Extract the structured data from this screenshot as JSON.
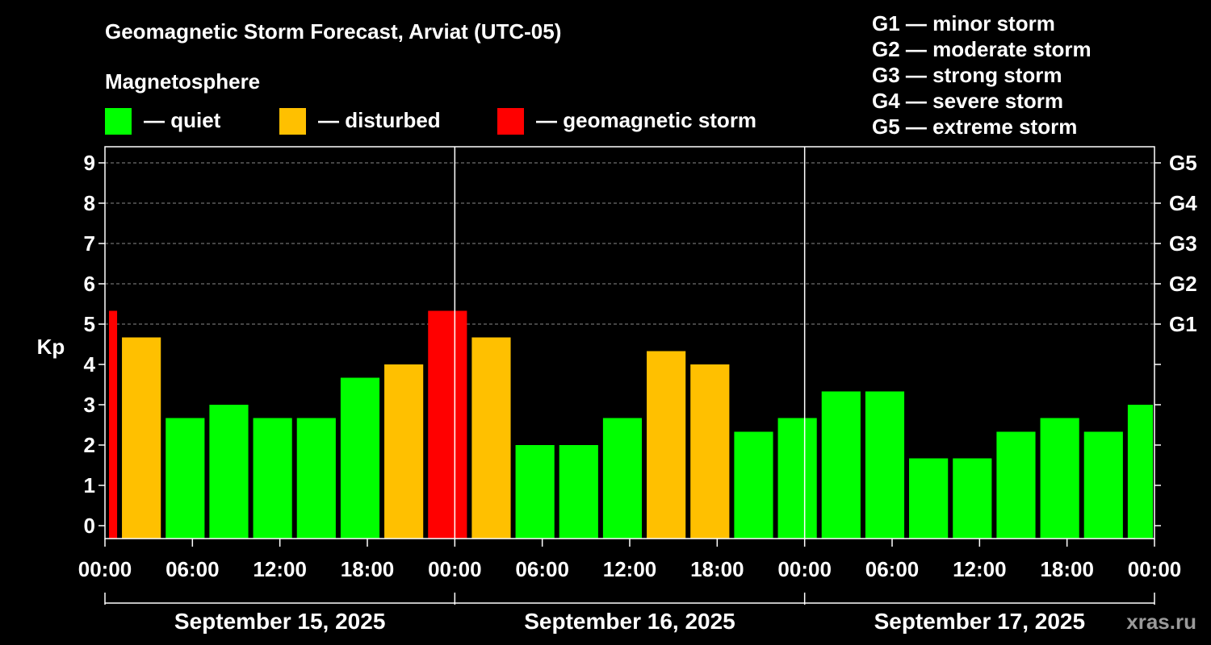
{
  "chart_data": {
    "type": "bar",
    "title": "Geomagnetic Storm Forecast, Arviat (UTC-05)",
    "legend_title": "Magnetosphere",
    "legend": [
      {
        "label": "— quiet",
        "color": "#00ff00"
      },
      {
        "label": "— disturbed",
        "color": "#ffc000"
      },
      {
        "label": "— geomagnetic storm",
        "color": "#ff0000"
      }
    ],
    "storm_scale": [
      "G1 — minor storm",
      "G2 — moderate storm",
      "G3 — strong storm",
      "G4 — severe storm",
      "G5 — extreme storm"
    ],
    "ylabel": "Kp",
    "ylim": [
      0,
      9
    ],
    "yticks": [
      "0",
      "1",
      "2",
      "3",
      "4",
      "5",
      "6",
      "7",
      "8",
      "9"
    ],
    "right_ticks": [
      {
        "kp": 5,
        "label": "G1"
      },
      {
        "kp": 6,
        "label": "G2"
      },
      {
        "kp": 7,
        "label": "G3"
      },
      {
        "kp": 8,
        "label": "G4"
      },
      {
        "kp": 9,
        "label": "G5"
      }
    ],
    "xlim_hours": [
      0,
      72
    ],
    "xticks": [
      "00:00",
      "06:00",
      "12:00",
      "18:00",
      "00:00",
      "06:00",
      "12:00",
      "18:00",
      "00:00",
      "06:00",
      "12:00",
      "18:00",
      "00:00"
    ],
    "days": [
      "September 15, 2025",
      "September 16, 2025",
      "September 17, 2025"
    ],
    "bars": [
      {
        "start": 0,
        "end": 1,
        "kp": 5.33,
        "level": "storm"
      },
      {
        "start": 1,
        "end": 4,
        "kp": 4.67,
        "level": "disturbed"
      },
      {
        "start": 4,
        "end": 7,
        "kp": 2.67,
        "level": "quiet"
      },
      {
        "start": 7,
        "end": 10,
        "kp": 3.0,
        "level": "quiet"
      },
      {
        "start": 10,
        "end": 13,
        "kp": 2.67,
        "level": "quiet"
      },
      {
        "start": 13,
        "end": 16,
        "kp": 2.67,
        "level": "quiet"
      },
      {
        "start": 16,
        "end": 19,
        "kp": 3.67,
        "level": "quiet"
      },
      {
        "start": 19,
        "end": 22,
        "kp": 4.0,
        "level": "disturbed"
      },
      {
        "start": 22,
        "end": 25,
        "kp": 5.33,
        "level": "storm"
      },
      {
        "start": 25,
        "end": 28,
        "kp": 4.67,
        "level": "disturbed"
      },
      {
        "start": 28,
        "end": 31,
        "kp": 2.0,
        "level": "quiet"
      },
      {
        "start": 31,
        "end": 34,
        "kp": 2.0,
        "level": "quiet"
      },
      {
        "start": 34,
        "end": 37,
        "kp": 2.67,
        "level": "quiet"
      },
      {
        "start": 37,
        "end": 40,
        "kp": 4.33,
        "level": "disturbed"
      },
      {
        "start": 40,
        "end": 43,
        "kp": 4.0,
        "level": "disturbed"
      },
      {
        "start": 43,
        "end": 46,
        "kp": 2.33,
        "level": "quiet"
      },
      {
        "start": 46,
        "end": 49,
        "kp": 2.67,
        "level": "quiet"
      },
      {
        "start": 49,
        "end": 52,
        "kp": 3.33,
        "level": "quiet"
      },
      {
        "start": 52,
        "end": 55,
        "kp": 3.33,
        "level": "quiet"
      },
      {
        "start": 55,
        "end": 58,
        "kp": 1.67,
        "level": "quiet"
      },
      {
        "start": 58,
        "end": 61,
        "kp": 1.67,
        "level": "quiet"
      },
      {
        "start": 61,
        "end": 64,
        "kp": 2.33,
        "level": "quiet"
      },
      {
        "start": 64,
        "end": 67,
        "kp": 2.67,
        "level": "quiet"
      },
      {
        "start": 67,
        "end": 70,
        "kp": 2.33,
        "level": "quiet"
      },
      {
        "start": 70,
        "end": 72,
        "kp": 3.0,
        "level": "quiet"
      }
    ],
    "level_colors": {
      "quiet": "#00ff00",
      "disturbed": "#ffc000",
      "storm": "#ff0000"
    },
    "grid": true,
    "watermark": "xras.ru"
  }
}
